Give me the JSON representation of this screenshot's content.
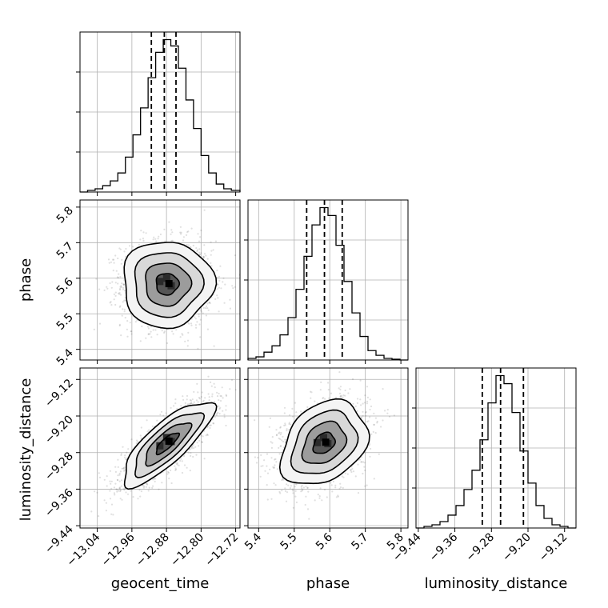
{
  "chart_data": {
    "type": "corner",
    "parameters": [
      "geocent_time",
      "phase",
      "luminosity_distance"
    ],
    "axis_labels": {
      "x": [
        "geocent_time",
        "phase",
        "luminosity_distance"
      ],
      "y": [
        "",
        "phase",
        "luminosity_distance"
      ]
    },
    "ranges": {
      "geocent_time": [
        -13.08,
        -12.71
      ],
      "phase": [
        5.37,
        5.82
      ],
      "luminosity_distance": [
        -9.445,
        -9.095
      ]
    },
    "ticks": {
      "geocent_time": [
        -13.04,
        -12.96,
        -12.88,
        -12.8,
        -12.72
      ],
      "phase": [
        5.4,
        5.5,
        5.6,
        5.7,
        5.8
      ],
      "luminosity_distance": [
        -9.44,
        -9.36,
        -9.28,
        -9.2,
        -9.12
      ]
    },
    "tick_labels": {
      "geocent_time": [
        "−13.04",
        "−12.96",
        "−12.88",
        "−12.80",
        "−12.72"
      ],
      "phase": [
        "5.4",
        "5.5",
        "5.6",
        "5.7",
        "5.8"
      ],
      "luminosity_distance": [
        "−9.44",
        "−9.36",
        "−9.28",
        "−9.20",
        "−9.12"
      ]
    },
    "quantiles": {
      "geocent_time": [
        -12.915,
        -12.885,
        -12.858
      ],
      "phase": [
        5.535,
        5.585,
        5.635
      ],
      "luminosity_distance": [
        -9.3,
        -9.26,
        -9.21
      ]
    },
    "histograms": {
      "geocent_time": {
        "edges": [
          -13.08,
          -13.0625,
          -13.045,
          -13.0275,
          -13.01,
          -12.9925,
          -12.975,
          -12.9575,
          -12.94,
          -12.9225,
          -12.905,
          -12.8875,
          -12.87,
          -12.8525,
          -12.835,
          -12.8175,
          -12.8,
          -12.7825,
          -12.765,
          -12.7475,
          -12.73,
          -12.71
        ],
        "counts": [
          0,
          0.01,
          0.02,
          0.04,
          0.07,
          0.12,
          0.22,
          0.36,
          0.53,
          0.72,
          0.88,
          0.96,
          0.92,
          0.78,
          0.58,
          0.4,
          0.23,
          0.12,
          0.05,
          0.02,
          0.01
        ]
      },
      "phase": {
        "edges": [
          5.37,
          5.3925,
          5.415,
          5.4375,
          5.46,
          5.4825,
          5.505,
          5.5275,
          5.55,
          5.5725,
          5.595,
          5.6175,
          5.64,
          5.6625,
          5.685,
          5.7075,
          5.73,
          5.7525,
          5.775,
          5.7975,
          5.82
        ],
        "counts": [
          0.01,
          0.02,
          0.05,
          0.09,
          0.16,
          0.27,
          0.45,
          0.66,
          0.86,
          0.97,
          0.92,
          0.73,
          0.5,
          0.3,
          0.15,
          0.06,
          0.03,
          0.01,
          0.005,
          0
        ]
      },
      "luminosity_distance": {
        "edges": [
          -9.445,
          -9.4275,
          -9.41,
          -9.3925,
          -9.375,
          -9.3575,
          -9.34,
          -9.3225,
          -9.305,
          -9.2875,
          -9.27,
          -9.2525,
          -9.235,
          -9.2175,
          -9.2,
          -9.1825,
          -9.165,
          -9.1475,
          -9.13,
          -9.1125,
          -9.095
        ],
        "counts": [
          0,
          0.01,
          0.02,
          0.04,
          0.08,
          0.14,
          0.24,
          0.36,
          0.55,
          0.78,
          0.95,
          0.9,
          0.72,
          0.48,
          0.28,
          0.14,
          0.06,
          0.02,
          0.01,
          0
        ]
      }
    },
    "correlations": {
      "geocent_time|phase": 0.0,
      "geocent_time|luminosity_distance": 0.8,
      "phase|luminosity_distance": 0.3
    },
    "grid": true,
    "colors": {
      "lines": "#000000",
      "grid": "#b0b0b0",
      "samples": "#555555"
    }
  }
}
